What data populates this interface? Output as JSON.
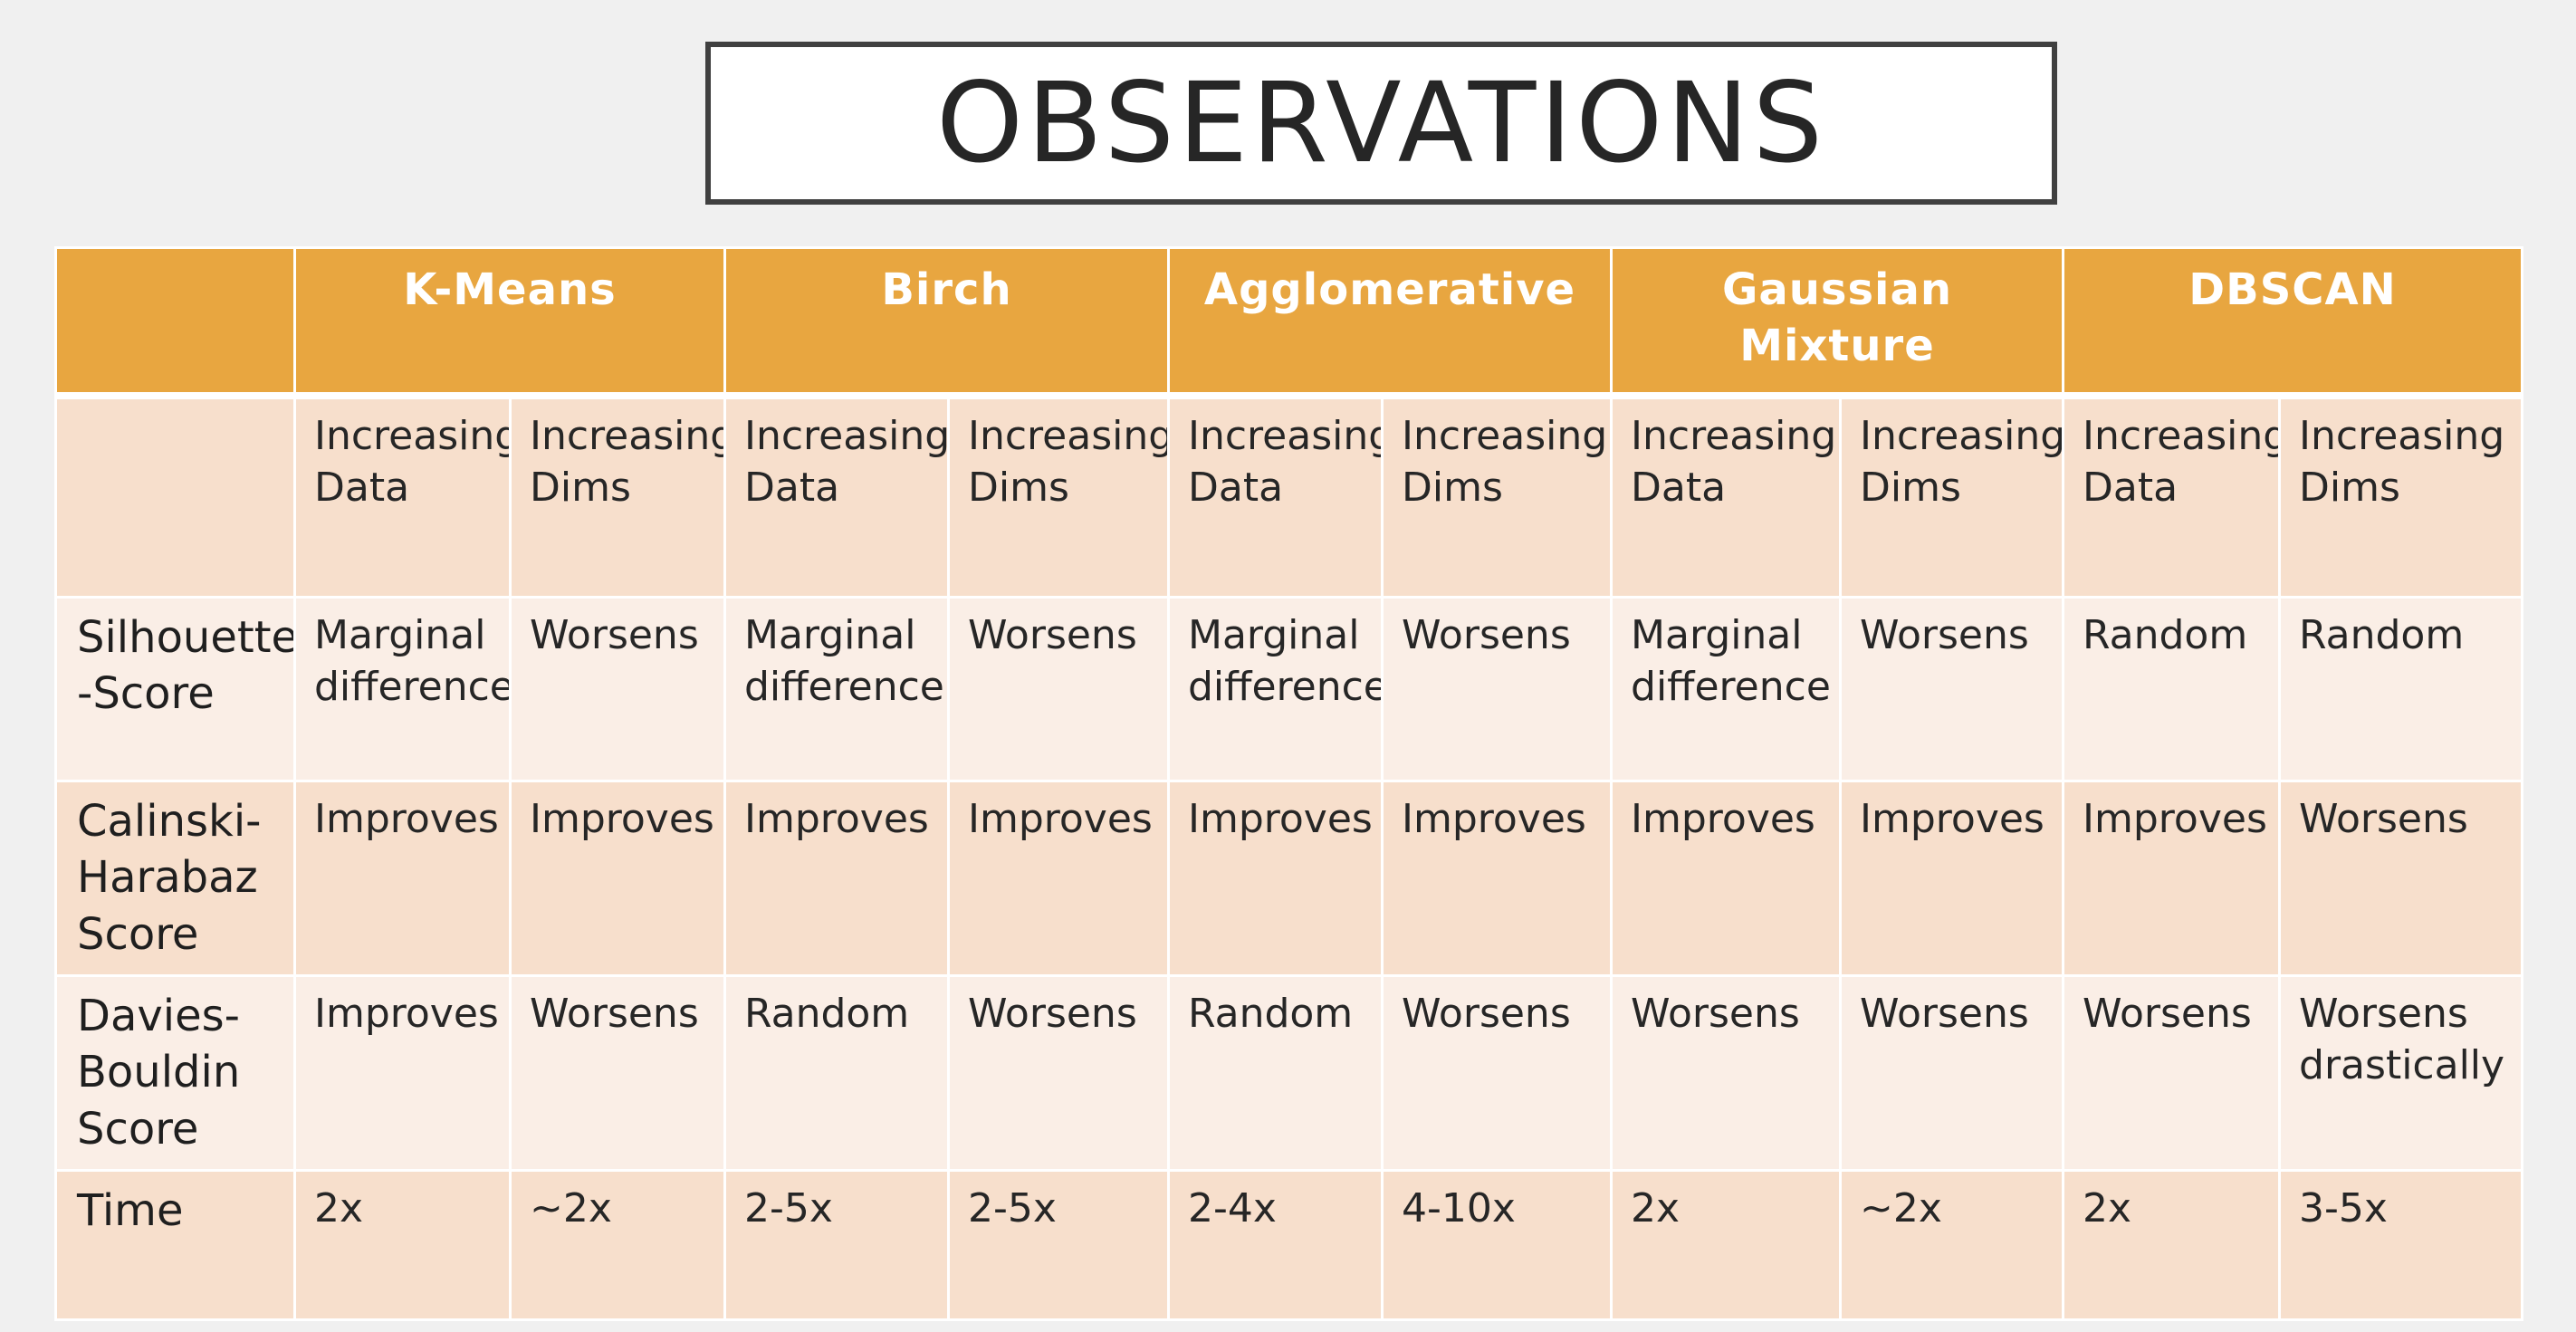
{
  "title": "OBSERVATIONS",
  "algorithms": [
    "K-Means",
    "Birch",
    "Agglomerative",
    "Gaussian Mixture",
    "DBSCAN"
  ],
  "subheaders": [
    "Increasing Data",
    "Increasing Dims",
    "Increasing Data",
    "Increasing Dims",
    "Increasing Data",
    "Increasing Dims",
    "Increasing Data",
    "Increasing Dims",
    "Increasing Data",
    "Increasing Dims"
  ],
  "rows": [
    {
      "label": "Silhouette -Score",
      "cells": [
        "Marginal difference",
        "Worsens",
        "Marginal difference",
        "Worsens",
        "Marginal difference",
        "Worsens",
        "Marginal difference",
        "Worsens",
        "Random",
        "Random"
      ]
    },
    {
      "label": "Calinski-Harabaz Score",
      "cells": [
        "Improves",
        "Improves",
        "Improves",
        "Improves",
        "Improves",
        "Improves",
        "Improves",
        "Improves",
        "Improves",
        "Worsens"
      ]
    },
    {
      "label": "Davies-Bouldin Score",
      "cells": [
        "Improves",
        "Worsens",
        "Random",
        "Worsens",
        "Random",
        "Worsens",
        "Worsens",
        "Worsens",
        "Worsens",
        "Worsens drastically"
      ]
    },
    {
      "label": "Time",
      "cells": [
        "2x",
        "~2x",
        "2-5x",
        "2-5x",
        "2-4x",
        "4-10x",
        "2x",
        "~2x",
        "2x",
        "3-5x"
      ]
    }
  ],
  "colors": {
    "header_bg": "#e8a640",
    "row_dark": "#f7dfcc",
    "row_light": "#faeee6",
    "title_border": "#404040"
  }
}
